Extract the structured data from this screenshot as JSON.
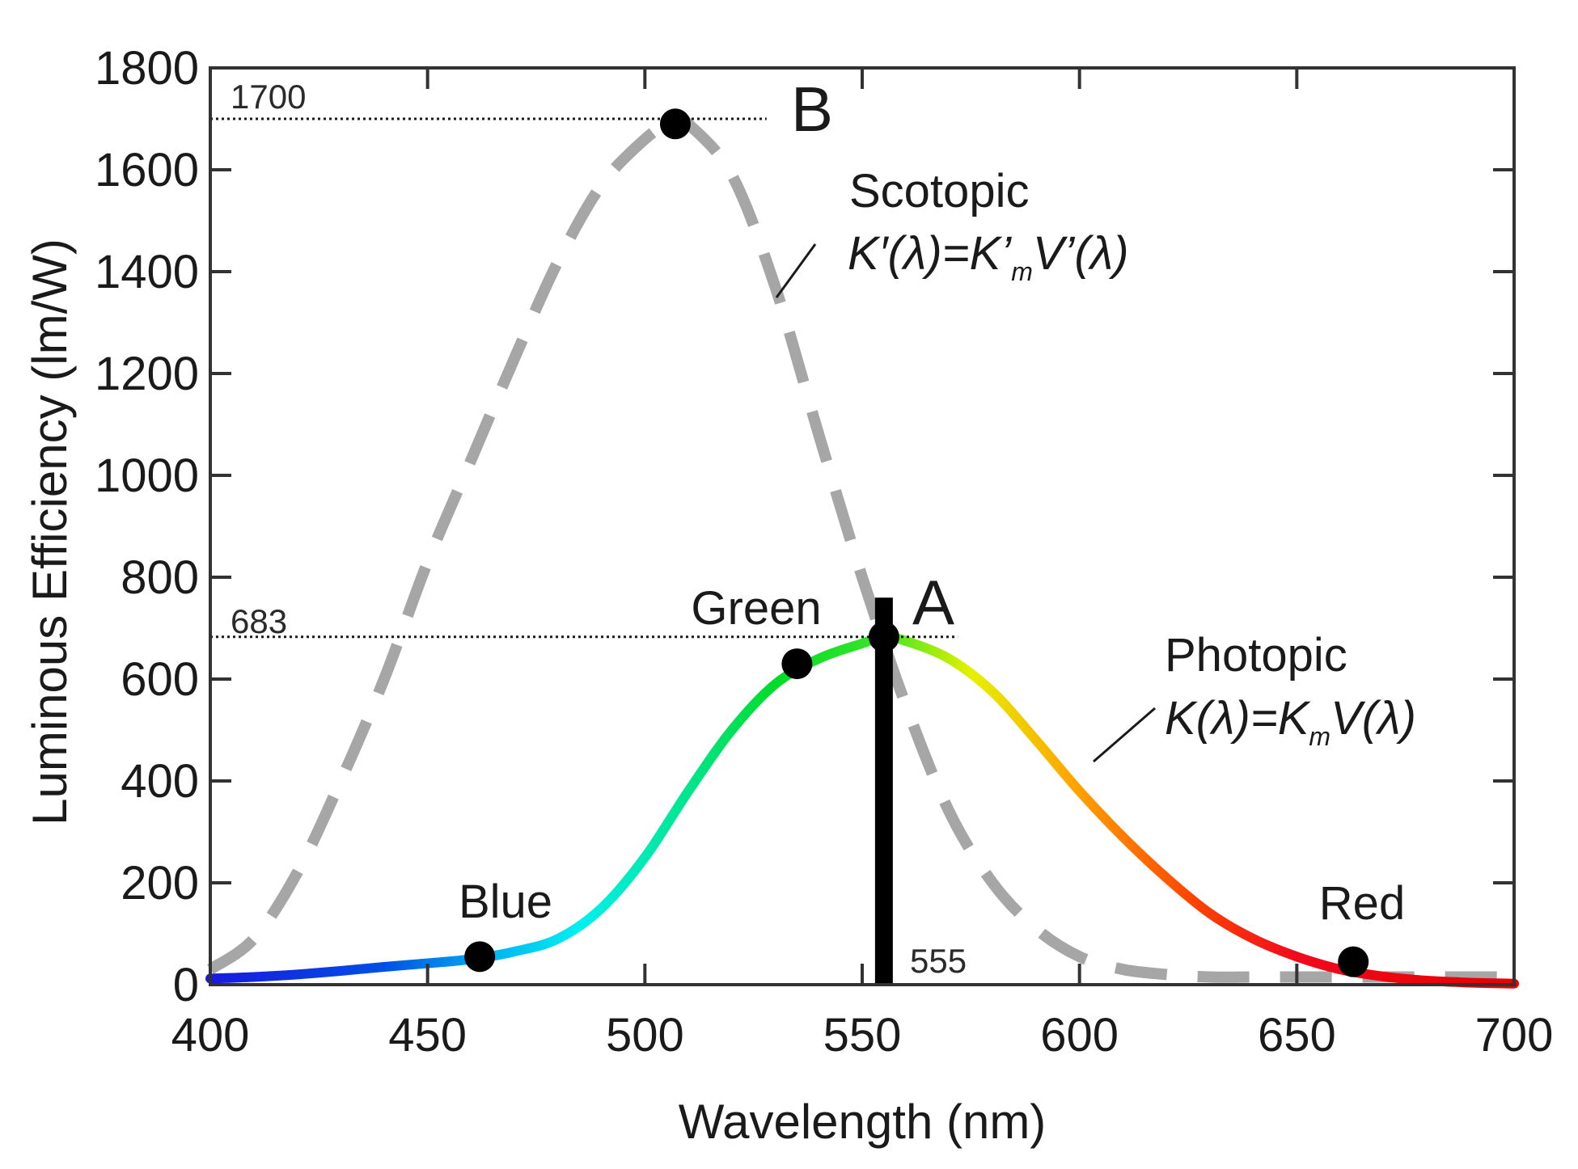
{
  "chart_data": {
    "type": "line",
    "title": "",
    "xlabel": "Wavelength (nm)",
    "ylabel": "Luminous Efficiency (lm/W)",
    "xlim": [
      400,
      700
    ],
    "ylim": [
      0,
      1800
    ],
    "x_ticks": [
      400,
      450,
      500,
      550,
      600,
      650,
      700
    ],
    "y_ticks": [
      0,
      200,
      400,
      600,
      800,
      1000,
      1200,
      1400,
      1600,
      1800
    ],
    "x_tick_labels": [
      "400",
      "450",
      "500",
      "550",
      "600",
      "650",
      "700"
    ],
    "y_tick_labels": [
      "0",
      "200",
      "400",
      "600",
      "800",
      "1000",
      "1200",
      "1400",
      "1600",
      "1800"
    ],
    "grid": false,
    "series": [
      {
        "name": "Scotopic",
        "formula": "K′(λ)=K’mV’(λ)",
        "formula_parts": [
          "K′(λ)=K’",
          "m",
          "V’(λ)"
        ],
        "style": "dashed",
        "color": "#a6a6a6",
        "x": [
          400,
          410,
          420,
          430,
          440,
          450,
          460,
          470,
          480,
          490,
          500,
          507,
          510,
          520,
          530,
          540,
          550,
          560,
          570,
          580,
          590,
          600,
          610,
          620,
          630,
          640,
          650,
          660,
          670,
          680,
          690,
          700
        ],
        "y": [
          30,
          90,
          220,
          400,
          600,
          830,
          1030,
          1230,
          1420,
          1570,
          1660,
          1700,
          1690,
          1590,
          1370,
          1080,
          800,
          550,
          340,
          200,
          110,
          55,
          30,
          20,
          15,
          15,
          15,
          15,
          15,
          15,
          15,
          15
        ]
      },
      {
        "name": "Photopic",
        "formula": "K(λ)=KmV(λ)",
        "formula_parts": [
          "K(λ)=K",
          "m",
          "V(λ)"
        ],
        "style": "solid-spectral",
        "x": [
          400,
          410,
          420,
          430,
          440,
          450,
          460,
          470,
          480,
          490,
          500,
          510,
          520,
          530,
          540,
          550,
          555,
          560,
          570,
          580,
          590,
          600,
          610,
          620,
          630,
          640,
          650,
          660,
          670,
          680,
          690,
          700
        ],
        "y": [
          12,
          15,
          20,
          27,
          35,
          42,
          50,
          65,
          90,
          150,
          250,
          380,
          500,
          590,
          640,
          670,
          683,
          675,
          640,
          575,
          480,
          380,
          290,
          210,
          140,
          90,
          55,
          30,
          16,
          8,
          4,
          2
        ]
      }
    ],
    "reference_lines": [
      {
        "label": "1700",
        "y": 1700,
        "x_start": 400,
        "x_end": 528
      },
      {
        "label": "683",
        "y": 683,
        "x_start": 400,
        "x_end": 572
      }
    ],
    "vertical_marker": {
      "label": "555",
      "x": 555,
      "y_top": 760
    },
    "points": [
      {
        "label": "Blue",
        "x": 462,
        "y": 55
      },
      {
        "label": "Green",
        "x": 535,
        "y": 630
      },
      {
        "label": "A",
        "x": 555,
        "y": 683
      },
      {
        "label": "B",
        "x": 507,
        "y": 1690
      },
      {
        "label": "Red",
        "x": 663,
        "y": 45
      }
    ],
    "spectral_gradient": [
      {
        "wl": 400,
        "color": "#1a1adc"
      },
      {
        "wl": 440,
        "color": "#0050e6"
      },
      {
        "wl": 465,
        "color": "#00b4f0"
      },
      {
        "wl": 485,
        "color": "#00f0f0"
      },
      {
        "wl": 510,
        "color": "#00e68c"
      },
      {
        "wl": 530,
        "color": "#00dc28"
      },
      {
        "wl": 555,
        "color": "#3ce628"
      },
      {
        "wl": 575,
        "color": "#e6f000"
      },
      {
        "wl": 600,
        "color": "#ffa000"
      },
      {
        "wl": 625,
        "color": "#ff4600"
      },
      {
        "wl": 650,
        "color": "#f00a1e"
      },
      {
        "wl": 700,
        "color": "#e60000"
      }
    ]
  }
}
